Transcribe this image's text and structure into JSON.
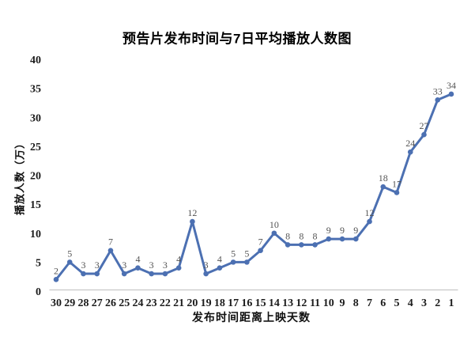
{
  "chart_data": {
    "type": "line",
    "title": "预告片发布时间与7日平均播放人数图",
    "xlabel": "发布时间距离上映天数",
    "ylabel": "播放人数（万）",
    "categories": [
      "30",
      "29",
      "28",
      "27",
      "26",
      "25",
      "24",
      "23",
      "22",
      "21",
      "20",
      "19",
      "18",
      "17",
      "16",
      "15",
      "14",
      "13",
      "12",
      "11",
      "10",
      "9",
      "8",
      "7",
      "6",
      "5",
      "4",
      "3",
      "2",
      "1"
    ],
    "values": [
      2,
      5,
      3,
      3,
      7,
      3,
      4,
      3,
      3,
      4,
      12,
      3,
      4,
      5,
      5,
      7,
      10,
      8,
      8,
      8,
      9,
      9,
      9,
      12,
      18,
      17,
      24,
      27,
      33,
      34
    ],
    "yticks": [
      0,
      5,
      10,
      15,
      20,
      25,
      30,
      35,
      40
    ],
    "ylim": [
      0,
      40
    ],
    "grid": false,
    "legend": "none",
    "marker": "circle",
    "data_labels_shown": true,
    "colors": {
      "line": "#4c70b2",
      "marker": "#4c70b2",
      "data_label": "#545454",
      "tick_label": "#1c1c1c",
      "axis_line": "#bfbfbf",
      "title": "#000000",
      "background": "#ffffff"
    }
  }
}
